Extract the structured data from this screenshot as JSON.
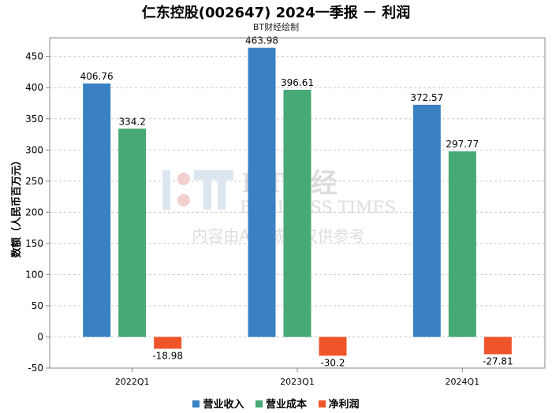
{
  "header": {
    "title": "仁东控股(002647) 2024一季报 － 利润",
    "subtitle": "BT财经绘制"
  },
  "watermark": {
    "brand": "BT财经",
    "brand_en": "BUSINESS TIMES",
    "notice": "内容由AI生成，仅供参考"
  },
  "colors": {
    "revenue": "#3a81c3",
    "cost": "#46a976",
    "profit": "#f0542a"
  },
  "chart_data": {
    "type": "bar",
    "categories": [
      "2022Q1",
      "2023Q1",
      "2024Q1"
    ],
    "series": [
      {
        "name": "营业收入",
        "values": [
          406.76,
          463.98,
          372.57
        ]
      },
      {
        "name": "营业成本",
        "values": [
          334.2,
          396.61,
          297.77
        ]
      },
      {
        "name": "净利润",
        "values": [
          -18.98,
          -30.2,
          -27.81
        ]
      }
    ],
    "ylabel": "数额（人民币百万元）",
    "ylim": [
      -50,
      480
    ],
    "yticks": [
      -50,
      0,
      50,
      100,
      150,
      200,
      250,
      300,
      350,
      400,
      450
    ],
    "grid": true,
    "legend_position": "bottom"
  }
}
